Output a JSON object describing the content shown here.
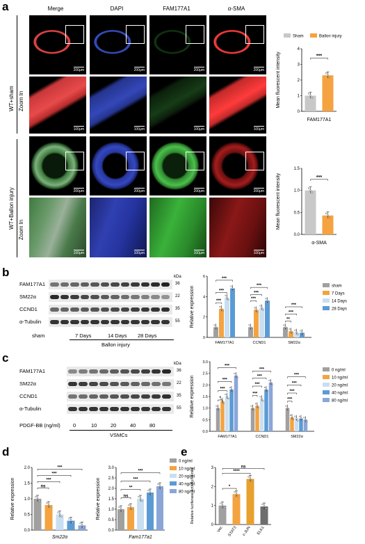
{
  "panels": {
    "a": "a",
    "b": "b",
    "c": "c",
    "d": "d",
    "e": "e"
  },
  "panel_a": {
    "col_headers": [
      "Merge",
      "DAPI",
      "FAM177A1",
      "α-SMA"
    ],
    "row_labels": {
      "sham": "WT+sham",
      "balloon": "WT+Ballon injury",
      "zoom": "Zoom In"
    },
    "scale_200": "200μm",
    "scale_100": "100μm"
  },
  "blot_b": {
    "kda": "kDa",
    "proteins": [
      {
        "name": "FAM177A1",
        "kda": "36"
      },
      {
        "name": "SM22α",
        "kda": "22"
      },
      {
        "name": "CCND1",
        "kda": "35"
      },
      {
        "name": "α-Tubulin",
        "kda": "55"
      }
    ],
    "groups": [
      "sham",
      "7 Days",
      "14 Days",
      "28 Days"
    ],
    "bottom": "Ballon injury"
  },
  "blot_c": {
    "kda": "kDa",
    "proteins": [
      {
        "name": "FAM177A1",
        "kda": "36"
      },
      {
        "name": "SM22α",
        "kda": "22"
      },
      {
        "name": "CCND1",
        "kda": "35"
      },
      {
        "name": "α-Tubulin",
        "kda": "55"
      }
    ],
    "xlabel": "PDGF-BB (ng/ml)",
    "groups": [
      "0",
      "10",
      "20",
      "40",
      "80"
    ],
    "bottom": "VSMCs"
  },
  "chart_data": [
    {
      "id": "a1",
      "type": "bar",
      "legend": [
        "Sham",
        "Ballon injury"
      ],
      "colors": [
        "#c8c8c8",
        "#f4a340"
      ],
      "categories": [
        "Sham",
        "Ballon injury"
      ],
      "values": [
        1.0,
        2.3
      ],
      "xlabel": "FAM177A1",
      "ylabel": "Mean fluorescent intensity",
      "ylim": [
        0,
        4
      ],
      "yticks": [
        "0",
        "1",
        "2",
        "3",
        "4"
      ],
      "sig": [
        "***"
      ]
    },
    {
      "id": "a2",
      "type": "bar",
      "colors": [
        "#c8c8c8",
        "#f4a340"
      ],
      "categories": [
        "Sham",
        "Ballon injury"
      ],
      "values": [
        1.0,
        0.43
      ],
      "xlabel": "α-SMA",
      "ylabel": "Mean fluorescent intensity",
      "ylim": [
        0,
        1.5
      ],
      "yticks": [
        "0.0",
        "0.5",
        "1.0",
        "1.5"
      ],
      "sig": [
        "***"
      ]
    },
    {
      "id": "b",
      "type": "bar",
      "categories": [
        "FAM177A1",
        "CCND1",
        "SM22α"
      ],
      "series": [
        {
          "name": "sham",
          "color": "#a0a0a0",
          "values": [
            1.0,
            1.0,
            1.0
          ]
        },
        {
          "name": "7 Days",
          "color": "#f4a340",
          "values": [
            2.8,
            2.7,
            0.6
          ]
        },
        {
          "name": "14 Days",
          "color": "#c9dff1",
          "values": [
            3.9,
            2.9,
            0.5
          ]
        },
        {
          "name": "28 Days",
          "color": "#5b9bd5",
          "values": [
            4.8,
            3.6,
            0.45
          ]
        }
      ],
      "ylabel": "Relative expression",
      "ylim": [
        0,
        6
      ],
      "yticks": [
        "0",
        "2",
        "4",
        "6"
      ],
      "sig": [
        "***",
        "***",
        "***",
        "***",
        "***",
        "***",
        "**",
        "***",
        "***"
      ]
    },
    {
      "id": "c",
      "type": "bar",
      "categories": [
        "FAM177A1",
        "CCND1",
        "SM22α"
      ],
      "series": [
        {
          "name": "0 ng/ml",
          "color": "#a0a0a0",
          "values": [
            1.0,
            1.0,
            1.0
          ]
        },
        {
          "name": "10 ng/ml",
          "color": "#f4a340",
          "values": [
            1.3,
            1.1,
            0.6
          ]
        },
        {
          "name": "20 ng/ml",
          "color": "#c9dff1",
          "values": [
            1.5,
            1.4,
            0.55
          ]
        },
        {
          "name": "40 ng/ml",
          "color": "#5b9bd5",
          "values": [
            1.8,
            1.8,
            0.55
          ]
        },
        {
          "name": "80 ng/ml",
          "color": "#8aa6d8",
          "values": [
            2.4,
            2.1,
            0.5
          ]
        }
      ],
      "ylabel": "Relative expression",
      "ylim": [
        0,
        3
      ],
      "yticks": [
        "0.0",
        "0.5",
        "1.0",
        "1.5",
        "2.0",
        "2.5",
        "3.0"
      ],
      "sig": [
        "***",
        "***",
        "***",
        "*",
        "***",
        "***",
        "***",
        "***",
        "***",
        "***",
        "***",
        "***"
      ]
    },
    {
      "id": "d1",
      "type": "bar",
      "categories": [
        "0 ng/ml",
        "10 ng/ml",
        "20 ng/ml",
        "40 ng/ml",
        "80 ng/ml"
      ],
      "values": [
        1.0,
        0.8,
        0.5,
        0.3,
        0.15
      ],
      "colors": [
        "#a0a0a0",
        "#f4a340",
        "#c9dff1",
        "#5b9bd5",
        "#8aa6d8"
      ],
      "xlabel": "Sm22α",
      "ylabel": "Relative expression",
      "ylim": [
        0,
        2
      ],
      "yticks": [
        "0.0",
        "0.5",
        "1.0",
        "1.5",
        "2.0"
      ],
      "sig": [
        "***",
        "***",
        "***",
        "ns"
      ]
    },
    {
      "id": "d2",
      "type": "bar",
      "categories": [
        "0 ng/ml",
        "10 ng/ml",
        "20 ng/ml",
        "40 ng/ml",
        "80 ng/ml"
      ],
      "values": [
        1.0,
        1.1,
        1.5,
        1.8,
        2.1
      ],
      "colors": [
        "#a0a0a0",
        "#f4a340",
        "#c9dff1",
        "#5b9bd5",
        "#8aa6d8"
      ],
      "legend": [
        "0 ng/ml",
        "10 ng/ml",
        "20 ng/ml",
        "40 ng/ml",
        "80 ng/ml"
      ],
      "xlabel": "Fam177a1",
      "ylabel": "Relative expression",
      "ylim": [
        0,
        3
      ],
      "yticks": [
        "0.0",
        "0.5",
        "1.0",
        "1.5",
        "2.0",
        "2.5",
        "3.0"
      ],
      "sig": [
        "***",
        "***",
        "**",
        "ns"
      ]
    },
    {
      "id": "e",
      "type": "bar",
      "categories": [
        "Vec",
        "STAT3",
        "c-JUN",
        "ELK1"
      ],
      "values": [
        1.0,
        1.6,
        2.4,
        0.95
      ],
      "colors": [
        "#a0a0a0",
        "#f4a340",
        "#e8a12e",
        "#6e6e6e"
      ],
      "ylabel": "Relative luciferase activity/Renila",
      "ylim": [
        0,
        3
      ],
      "yticks": [
        "0",
        "1",
        "2",
        "3"
      ],
      "sig": [
        "ns",
        "****",
        "*"
      ]
    }
  ]
}
